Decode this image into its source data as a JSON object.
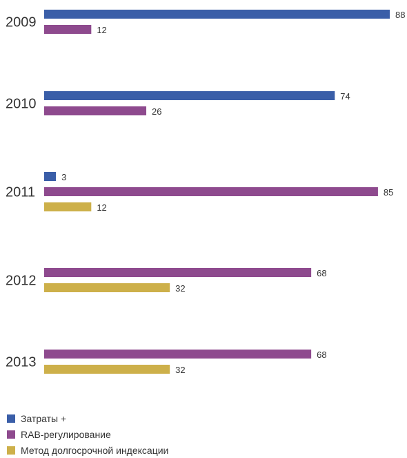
{
  "chart_data": {
    "type": "bar",
    "orientation": "horizontal",
    "categories": [
      "2009",
      "2010",
      "2011",
      "2012",
      "2013"
    ],
    "series": [
      {
        "name": "Затраты +",
        "color": "#3a5ea8",
        "values": [
          88,
          74,
          3,
          null,
          null
        ]
      },
      {
        "name": "RAB-регулирование",
        "color": "#8e4a8e",
        "values": [
          12,
          26,
          85,
          68,
          68
        ]
      },
      {
        "name": "Метод долгосрочной индексации",
        "color": "#cdb04a",
        "values": [
          null,
          null,
          12,
          32,
          32
        ]
      }
    ],
    "xlim": [
      0,
      88
    ],
    "grid": false,
    "legend_placement": "bottom-left"
  }
}
